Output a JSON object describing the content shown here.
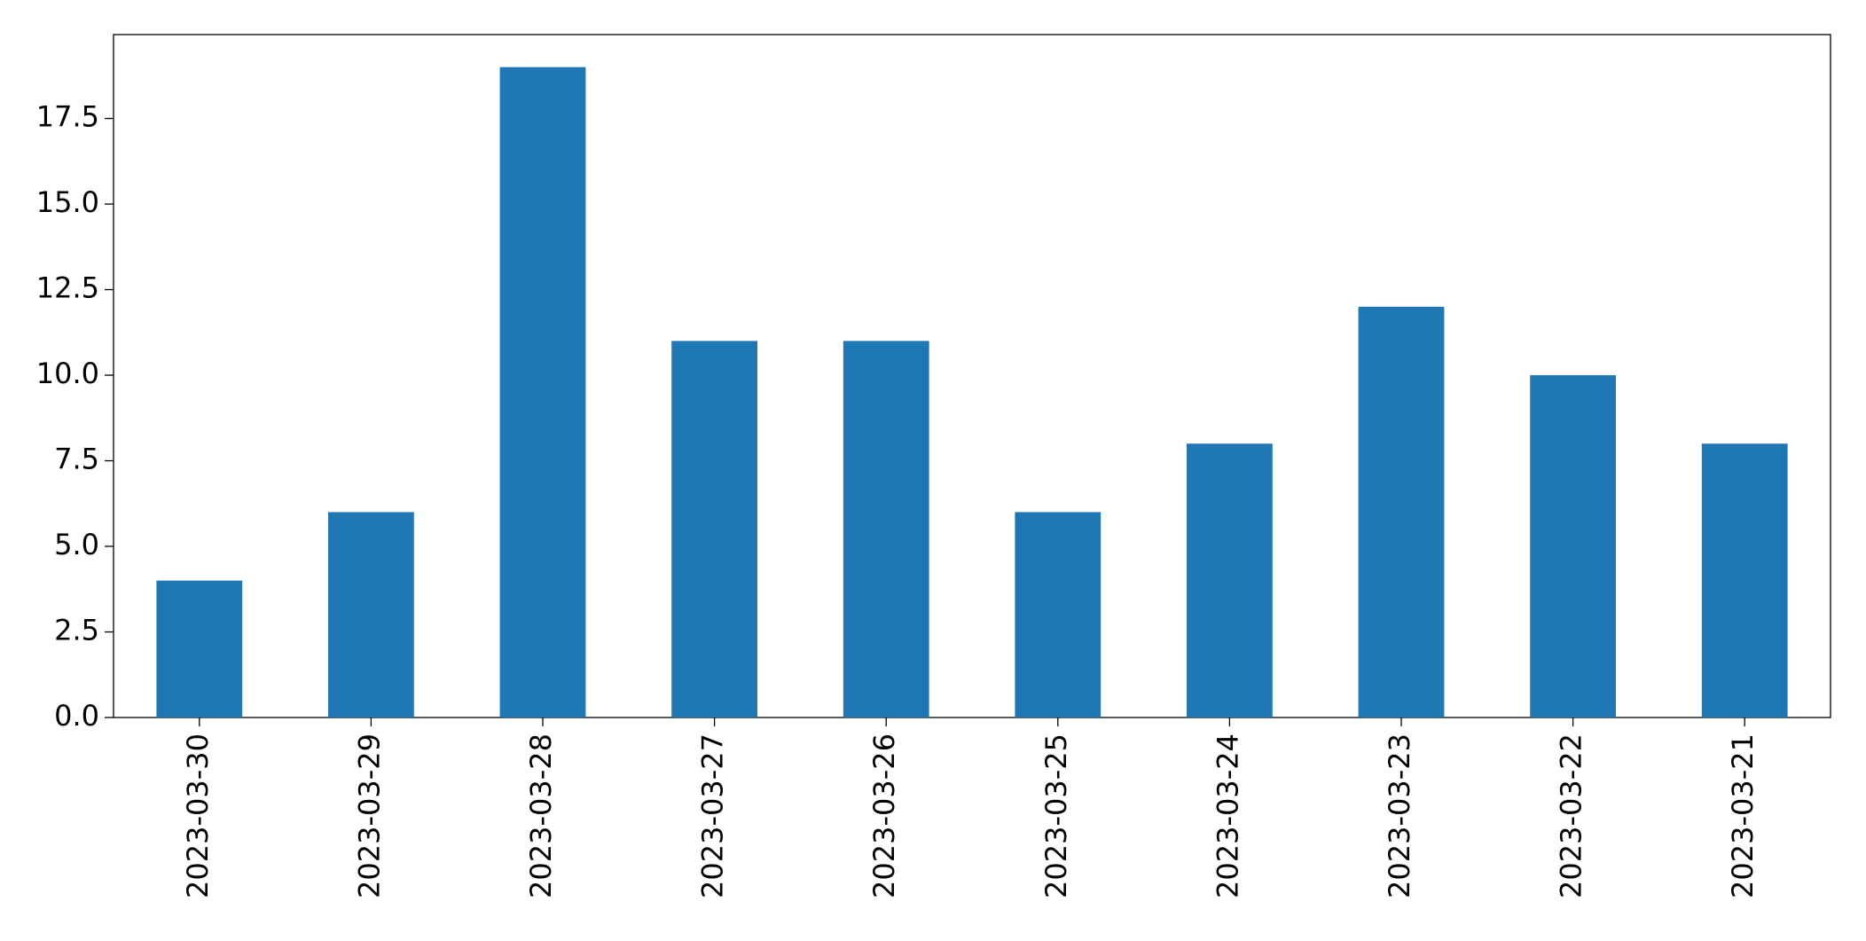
{
  "chart_data": {
    "type": "bar",
    "categories": [
      "2023-03-30",
      "2023-03-29",
      "2023-03-28",
      "2023-03-27",
      "2023-03-26",
      "2023-03-25",
      "2023-03-24",
      "2023-03-23",
      "2023-03-22",
      "2023-03-21"
    ],
    "values": [
      4,
      6,
      19,
      11,
      11,
      6,
      8,
      12,
      10,
      8
    ],
    "color": "#1f77b4",
    "ylim": [
      0,
      19.95
    ],
    "yticks": [
      {
        "value": 0,
        "label": "0.0"
      },
      2.5,
      {
        "value": 5,
        "label": "5.0"
      },
      7.5,
      {
        "value": 10,
        "label": "10.0"
      },
      12.5,
      {
        "value": 15,
        "label": "15.0"
      },
      17.5
    ],
    "grid": false
  }
}
